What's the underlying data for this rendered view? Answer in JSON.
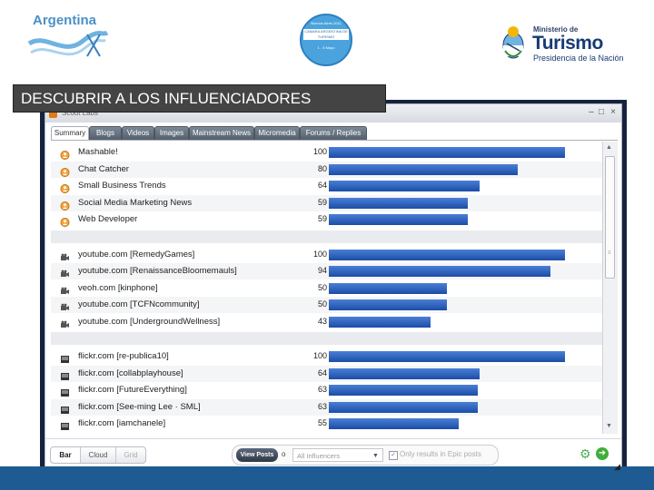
{
  "header": {
    "argentina_logo": "Argentina",
    "seal": {
      "top": "Buenos Aires 2011",
      "band": "CAMARA ARGENTINA DE TURISMO",
      "bottom": "1 - 5 Mayo"
    },
    "ministry": {
      "small": "Ministerio de",
      "big": "Turismo",
      "sub": "Presidencia de la Nación"
    }
  },
  "slide_title": "DESCUBRIR A LOS INFLUENCIADORES",
  "window": {
    "title": "Scout Labs",
    "min_label": "–",
    "max_label": "□",
    "close_label": "×"
  },
  "tabs": [
    {
      "label": "Summary",
      "active": true
    },
    {
      "label": "Blogs",
      "active": false
    },
    {
      "label": "Videos",
      "active": false
    },
    {
      "label": "Images",
      "active": false
    },
    {
      "label": "Mainstream News",
      "active": false
    },
    {
      "label": "Micromedia",
      "active": false
    },
    {
      "label": "Forums / Replies",
      "active": false
    }
  ],
  "groups": [
    {
      "icon": "blog-person-icon",
      "rows": [
        {
          "name": "Mashable!",
          "value": 100
        },
        {
          "name": "Chat Catcher",
          "value": 80
        },
        {
          "name": "Small Business Trends",
          "value": 64
        },
        {
          "name": "Social Media Marketing News",
          "value": 59
        },
        {
          "name": "Web Developer",
          "value": 59
        }
      ]
    },
    {
      "icon": "video-camera-icon",
      "rows": [
        {
          "name": "youtube.com [RemedyGames]",
          "value": 100
        },
        {
          "name": "youtube.com [RenaissanceBloomemauls]",
          "value": 94
        },
        {
          "name": "veoh.com [kinphone]",
          "value": 50
        },
        {
          "name": "youtube.com [TCFNcommunity]",
          "value": 50
        },
        {
          "name": "youtube.com [UndergroundWellness]",
          "value": 43
        }
      ]
    },
    {
      "icon": "image-icon",
      "rows": [
        {
          "name": "flickr.com [re-publica10]",
          "value": 100
        },
        {
          "name": "flickr.com [collabplayhouse]",
          "value": 64
        },
        {
          "name": "flickr.com [FutureEverything]",
          "value": 63
        },
        {
          "name": "flickr.com [See-ming Lee · SML]",
          "value": 63
        },
        {
          "name": "flickr.com [iamchanele]",
          "value": 55
        }
      ]
    }
  ],
  "bottom": {
    "view_modes": [
      "Bar",
      "Cloud",
      "Grid"
    ],
    "view_posts": "View Posts",
    "of_label": "o",
    "influencers_select": "All Influencers",
    "select_arrow": "▼",
    "check_mark": "✓",
    "checkbox_label": "Only results in Epic posts",
    "gear_glyph": "⚙",
    "go_glyph": "➜"
  },
  "colors": {
    "bar": "#2a5fbf",
    "title_bg": "#444444",
    "frame": "#16233f",
    "footer": "#1f5b93"
  }
}
